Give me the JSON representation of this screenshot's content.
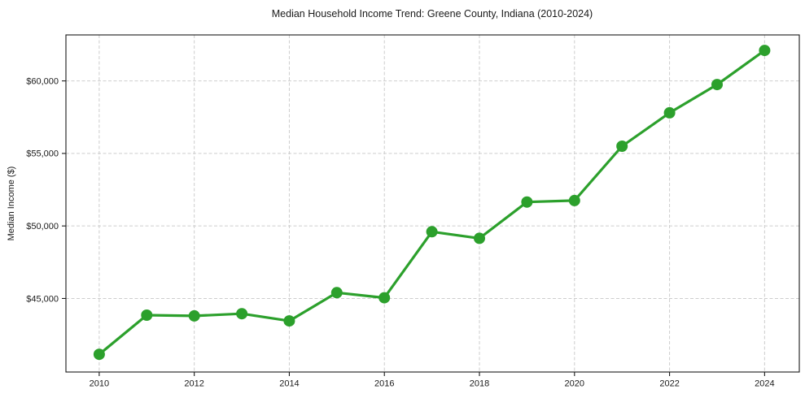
{
  "chart_data": {
    "type": "line",
    "title": "Median Household Income Trend: Greene County, Indiana (2010-2024)",
    "xlabel": "",
    "ylabel": "Median Income ($)",
    "x": [
      2010,
      2011,
      2012,
      2013,
      2014,
      2015,
      2016,
      2017,
      2018,
      2019,
      2020,
      2021,
      2022,
      2023,
      2024
    ],
    "values": [
      41150,
      43850,
      43800,
      43950,
      43450,
      45400,
      45050,
      49600,
      49150,
      51650,
      51750,
      55500,
      57800,
      59750,
      62100
    ],
    "series_name": "Median Household Income",
    "x_ticks": [
      {
        "value": 2010,
        "label": "2010"
      },
      {
        "value": 2012,
        "label": "2012"
      },
      {
        "value": 2014,
        "label": "2014"
      },
      {
        "value": 2016,
        "label": "2016"
      },
      {
        "value": 2018,
        "label": "2018"
      },
      {
        "value": 2020,
        "label": "2020"
      },
      {
        "value": 2022,
        "label": "2022"
      },
      {
        "value": 2024,
        "label": "2024"
      }
    ],
    "y_ticks": [
      {
        "value": 45000,
        "label": "$45,000"
      },
      {
        "value": 50000,
        "label": "$50,000"
      },
      {
        "value": 55000,
        "label": "$55,000"
      },
      {
        "value": 60000,
        "label": "$60,000"
      }
    ],
    "xlim": [
      2009.3,
      2024.73
    ],
    "ylim": [
      39930,
      63170
    ],
    "grid": true,
    "legend": "none",
    "line_color": "#2ca02c",
    "marker": "circle",
    "marker_radius": 7,
    "grid_color": "#cdcdcd",
    "spine_color": "#1a1a1a",
    "text_color": "#1a1a1a",
    "background": "#ffffff"
  }
}
